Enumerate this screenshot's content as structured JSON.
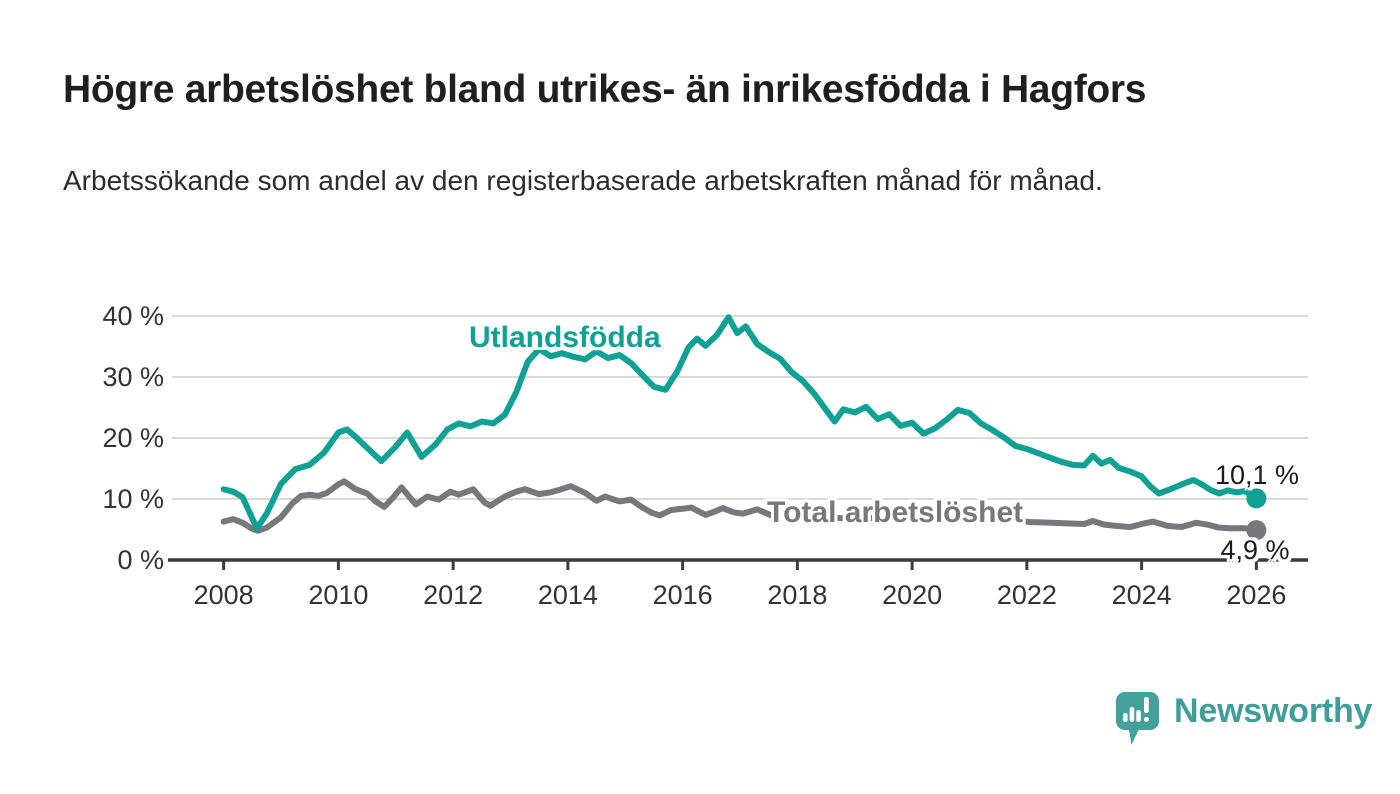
{
  "title": "Högre arbetslöshet bland utrikes- än inrikesfödda i Hagfors",
  "subtitle": "Arbetssökande som andel av den registerbaserade arbetskraften månad för månad.",
  "branding": {
    "name": "Newsworthy"
  },
  "colors": {
    "foreign_born": "#0fa193",
    "total": "#77777c",
    "axis": "#3c3c3c",
    "grid": "#d9d9d9",
    "tick_text": "#333333",
    "value_text": "#1c1c1c",
    "logo": "#43a09a"
  },
  "chart_data": {
    "type": "line",
    "title": "Högre arbetslöshet bland utrikes- än inrikesfödda i Hagfors",
    "xlabel": "",
    "ylabel": "Arbetssökande som andel av den registerbaserade arbetskraften",
    "grid": true,
    "x_axis": {
      "ticks": [
        2008,
        2010,
        2012,
        2014,
        2016,
        2018,
        2020,
        2022,
        2024,
        2026
      ],
      "range": [
        2007.1,
        2026.9
      ]
    },
    "y_axis": {
      "ticks": [
        0,
        10,
        20,
        30,
        40
      ],
      "unit": "%",
      "range": [
        0,
        41
      ]
    },
    "series": [
      {
        "name": "Utlandsfödda",
        "color_key": "foreign_born",
        "end_label": "10,1 %",
        "end_value": 10.1,
        "points": [
          [
            2008.0,
            11.6
          ],
          [
            2008.17,
            11.2
          ],
          [
            2008.33,
            10.3
          ],
          [
            2008.5,
            6.8
          ],
          [
            2008.58,
            5.2
          ],
          [
            2008.75,
            7.6
          ],
          [
            2009.0,
            12.5
          ],
          [
            2009.25,
            14.9
          ],
          [
            2009.5,
            15.6
          ],
          [
            2009.75,
            17.6
          ],
          [
            2010.0,
            20.9
          ],
          [
            2010.15,
            21.4
          ],
          [
            2010.3,
            20.2
          ],
          [
            2010.5,
            18.4
          ],
          [
            2010.75,
            16.2
          ],
          [
            2011.0,
            18.6
          ],
          [
            2011.2,
            20.9
          ],
          [
            2011.45,
            16.9
          ],
          [
            2011.7,
            19.0
          ],
          [
            2011.9,
            21.4
          ],
          [
            2012.1,
            22.4
          ],
          [
            2012.3,
            21.9
          ],
          [
            2012.5,
            22.7
          ],
          [
            2012.7,
            22.4
          ],
          [
            2012.9,
            23.8
          ],
          [
            2013.1,
            27.5
          ],
          [
            2013.3,
            32.5
          ],
          [
            2013.5,
            34.6
          ],
          [
            2013.7,
            33.4
          ],
          [
            2013.9,
            33.9
          ],
          [
            2014.1,
            33.3
          ],
          [
            2014.3,
            32.9
          ],
          [
            2014.5,
            34.2
          ],
          [
            2014.7,
            33.1
          ],
          [
            2014.9,
            33.6
          ],
          [
            2015.1,
            32.3
          ],
          [
            2015.3,
            30.3
          ],
          [
            2015.5,
            28.4
          ],
          [
            2015.7,
            27.9
          ],
          [
            2015.9,
            30.8
          ],
          [
            2016.1,
            34.8
          ],
          [
            2016.25,
            36.3
          ],
          [
            2016.4,
            35.1
          ],
          [
            2016.6,
            36.9
          ],
          [
            2016.8,
            39.8
          ],
          [
            2016.95,
            37.2
          ],
          [
            2017.1,
            38.3
          ],
          [
            2017.3,
            35.4
          ],
          [
            2017.5,
            34.1
          ],
          [
            2017.7,
            33.0
          ],
          [
            2017.9,
            30.8
          ],
          [
            2018.1,
            29.3
          ],
          [
            2018.3,
            27.2
          ],
          [
            2018.5,
            24.6
          ],
          [
            2018.65,
            22.7
          ],
          [
            2018.8,
            24.7
          ],
          [
            2019.0,
            24.2
          ],
          [
            2019.2,
            25.1
          ],
          [
            2019.4,
            23.1
          ],
          [
            2019.6,
            23.9
          ],
          [
            2019.8,
            22.0
          ],
          [
            2020.0,
            22.5
          ],
          [
            2020.2,
            20.7
          ],
          [
            2020.4,
            21.6
          ],
          [
            2020.6,
            23.0
          ],
          [
            2020.8,
            24.6
          ],
          [
            2021.0,
            24.1
          ],
          [
            2021.2,
            22.4
          ],
          [
            2021.4,
            21.3
          ],
          [
            2021.6,
            20.1
          ],
          [
            2021.8,
            18.7
          ],
          [
            2022.0,
            18.2
          ],
          [
            2022.2,
            17.5
          ],
          [
            2022.4,
            16.8
          ],
          [
            2022.6,
            16.1
          ],
          [
            2022.8,
            15.6
          ],
          [
            2023.0,
            15.5
          ],
          [
            2023.15,
            17.1
          ],
          [
            2023.3,
            15.8
          ],
          [
            2023.45,
            16.4
          ],
          [
            2023.6,
            15.1
          ],
          [
            2023.8,
            14.5
          ],
          [
            2024.0,
            13.7
          ],
          [
            2024.15,
            12.1
          ],
          [
            2024.3,
            10.9
          ],
          [
            2024.5,
            11.6
          ],
          [
            2024.7,
            12.4
          ],
          [
            2024.9,
            13.1
          ],
          [
            2025.05,
            12.4
          ],
          [
            2025.2,
            11.5
          ],
          [
            2025.35,
            10.9
          ],
          [
            2025.5,
            11.4
          ],
          [
            2025.65,
            11.1
          ],
          [
            2025.8,
            11.3
          ],
          [
            2026.0,
            10.1
          ]
        ]
      },
      {
        "name": "Total arbetslöshet",
        "color_key": "total",
        "end_label": "4,9 %",
        "end_value": 4.9,
        "points": [
          [
            2008.0,
            6.3
          ],
          [
            2008.17,
            6.7
          ],
          [
            2008.33,
            6.1
          ],
          [
            2008.5,
            5.1
          ],
          [
            2008.6,
            4.8
          ],
          [
            2008.75,
            5.3
          ],
          [
            2009.0,
            7.0
          ],
          [
            2009.2,
            9.3
          ],
          [
            2009.35,
            10.5
          ],
          [
            2009.5,
            10.7
          ],
          [
            2009.65,
            10.5
          ],
          [
            2009.8,
            11.0
          ],
          [
            2010.0,
            12.4
          ],
          [
            2010.1,
            12.9
          ],
          [
            2010.3,
            11.6
          ],
          [
            2010.5,
            10.9
          ],
          [
            2010.65,
            9.6
          ],
          [
            2010.8,
            8.7
          ],
          [
            2010.95,
            10.2
          ],
          [
            2011.1,
            11.9
          ],
          [
            2011.35,
            9.1
          ],
          [
            2011.55,
            10.4
          ],
          [
            2011.75,
            9.9
          ],
          [
            2011.95,
            11.2
          ],
          [
            2012.1,
            10.7
          ],
          [
            2012.35,
            11.6
          ],
          [
            2012.55,
            9.4
          ],
          [
            2012.65,
            8.9
          ],
          [
            2012.9,
            10.4
          ],
          [
            2013.1,
            11.2
          ],
          [
            2013.25,
            11.6
          ],
          [
            2013.5,
            10.8
          ],
          [
            2013.7,
            11.1
          ],
          [
            2013.85,
            11.5
          ],
          [
            2014.05,
            12.1
          ],
          [
            2014.3,
            11.0
          ],
          [
            2014.5,
            9.7
          ],
          [
            2014.65,
            10.4
          ],
          [
            2014.9,
            9.6
          ],
          [
            2015.1,
            9.9
          ],
          [
            2015.3,
            8.6
          ],
          [
            2015.45,
            7.8
          ],
          [
            2015.6,
            7.3
          ],
          [
            2015.8,
            8.2
          ],
          [
            2016.0,
            8.4
          ],
          [
            2016.15,
            8.6
          ],
          [
            2016.4,
            7.4
          ],
          [
            2016.55,
            7.9
          ],
          [
            2016.7,
            8.5
          ],
          [
            2016.9,
            7.8
          ],
          [
            2017.05,
            7.6
          ],
          [
            2017.3,
            8.3
          ],
          [
            2017.55,
            7.3
          ],
          [
            2017.8,
            7.6
          ],
          [
            2018.0,
            7.3
          ],
          [
            2018.3,
            7.0
          ],
          [
            2018.6,
            6.9
          ],
          [
            2019.0,
            6.8
          ],
          [
            2019.4,
            6.9
          ],
          [
            2019.8,
            7.1
          ],
          [
            2020.2,
            7.4
          ],
          [
            2020.6,
            7.5
          ],
          [
            2021.0,
            7.1
          ],
          [
            2021.4,
            6.7
          ],
          [
            2021.8,
            6.4
          ],
          [
            2022.1,
            6.2
          ],
          [
            2022.45,
            6.1
          ],
          [
            2022.7,
            6.0
          ],
          [
            2023.0,
            5.9
          ],
          [
            2023.15,
            6.4
          ],
          [
            2023.35,
            5.8
          ],
          [
            2023.55,
            5.6
          ],
          [
            2023.8,
            5.4
          ],
          [
            2024.0,
            5.9
          ],
          [
            2024.2,
            6.3
          ],
          [
            2024.45,
            5.6
          ],
          [
            2024.7,
            5.4
          ],
          [
            2024.95,
            6.1
          ],
          [
            2025.15,
            5.8
          ],
          [
            2025.35,
            5.3
          ],
          [
            2025.55,
            5.2
          ],
          [
            2025.8,
            5.2
          ],
          [
            2026.0,
            4.9
          ]
        ]
      }
    ]
  }
}
